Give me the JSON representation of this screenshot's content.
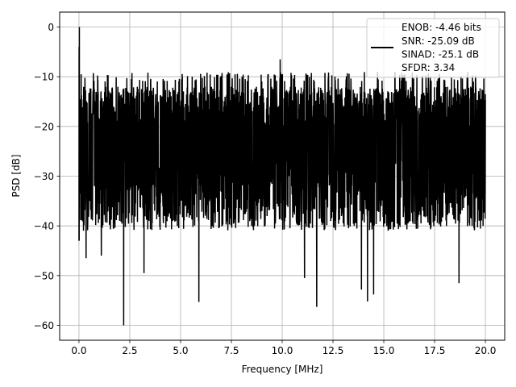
{
  "colors": {
    "line": "#000000",
    "grid": "#b0b0b0",
    "axes": "#000000",
    "background": "#ffffff",
    "legend_border": "#cccccc"
  },
  "chart_data": {
    "type": "line",
    "title": "",
    "xlabel": "Frequency [MHz]",
    "ylabel": "PSD [dB]",
    "xlim": [
      -0.95,
      20.95
    ],
    "ylim": [
      -63,
      3
    ],
    "xticks": [
      0,
      2.5,
      5,
      7.5,
      10,
      12.5,
      15,
      17.5,
      20
    ],
    "xtick_labels": [
      "0.0",
      "2.5",
      "5.0",
      "7.5",
      "10.0",
      "12.5",
      "15.0",
      "17.5",
      "20.0"
    ],
    "yticks": [
      0,
      -10,
      -20,
      -30,
      -40,
      -50,
      -60
    ],
    "ytick_labels": [
      "0",
      "−10",
      "−20",
      "−30",
      "−40",
      "−50",
      "−60"
    ],
    "grid": true,
    "legend_position": "top-right",
    "series": [
      {
        "name": "ENOB: -4.46 bits\nSNR: -25.09 dB\nSINAD: -25.1 dB\nSFDR: 3.34",
        "legend_lines": [
          "ENOB: -4.46 bits",
          "SNR: -25.09 dB",
          "SINAD: -25.1 dB",
          "SFDR: 3.34"
        ],
        "color": "#000000",
        "freq_range_mhz": [
          0,
          20
        ],
        "peak": {
          "x": 0.02,
          "y": 0
        },
        "notable_points": [
          {
            "x": 0.0,
            "y": -43
          },
          {
            "x": 0.35,
            "y": -46.5
          },
          {
            "x": 1.1,
            "y": -46
          },
          {
            "x": 2.2,
            "y": -60
          },
          {
            "x": 3.2,
            "y": -49.5
          },
          {
            "x": 5.9,
            "y": -55.3
          },
          {
            "x": 9.9,
            "y": -6.5
          },
          {
            "x": 11.1,
            "y": -50.5
          },
          {
            "x": 11.7,
            "y": -56.3
          },
          {
            "x": 13.9,
            "y": -52.8
          },
          {
            "x": 14.2,
            "y": -55.2
          },
          {
            "x": 14.5,
            "y": -53.8
          },
          {
            "x": 18.7,
            "y": -51.5
          }
        ],
        "upper_envelope_db": [
          -8,
          -10
        ],
        "mean_level_db": -22,
        "lower_envelope_db": [
          -38,
          -48
        ]
      }
    ]
  }
}
